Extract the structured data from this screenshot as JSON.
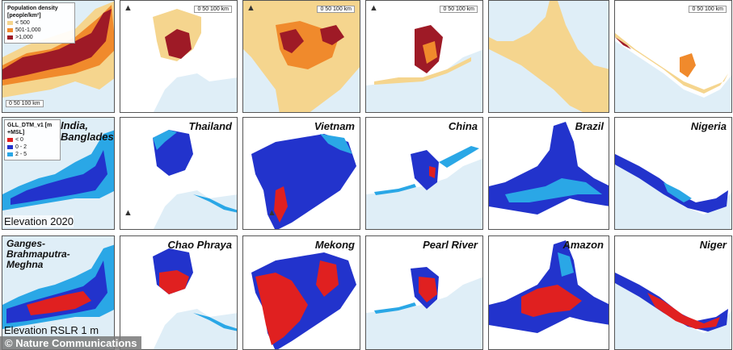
{
  "legend_population": {
    "title": "Population density [people/km²]",
    "items": [
      {
        "label": "< 500",
        "color": "#f5d58e"
      },
      {
        "label": "501-1,000",
        "color": "#f08a2c"
      },
      {
        "label": ">1,000",
        "color": "#9e1a26"
      }
    ]
  },
  "legend_elevation": {
    "title": "GLL_DTM_v1 [m +MSL]",
    "items": [
      {
        "label": "< 0",
        "color": "#e02020"
      },
      {
        "label": "0 - 2",
        "color": "#2233cc"
      },
      {
        "label": "2 - 5",
        "color": "#2aa7e6"
      }
    ]
  },
  "scale_bar": "0  50  100 km",
  "row_labels": {
    "row2": "Elevation 2020",
    "row3": "Elevation RSLR 1 m"
  },
  "country_labels": [
    "India, Bangladesh",
    "Thailand",
    "Vietnam",
    "China",
    "Brazil",
    "Nigeria"
  ],
  "delta_labels": [
    "Ganges-Brahmaputra-Meghna",
    "Chao Phraya",
    "Mekong",
    "Pearl River",
    "Amazon",
    "Niger"
  ],
  "north_symbol": "north-arrow-icon",
  "credit": "© Nature Communications",
  "colors": {
    "water": "#dfeef7",
    "land_low": "#f5d58e",
    "land_mid": "#f08a2c",
    "land_high": "#9e1a26",
    "elev_below": "#e02020",
    "elev_0_2": "#2233cc",
    "elev_2_5": "#2aa7e6"
  }
}
